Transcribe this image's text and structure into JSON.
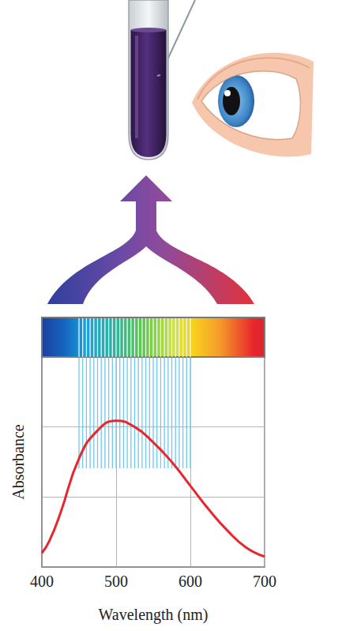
{
  "chart_data": {
    "type": "line",
    "x": [
      400,
      410,
      425,
      450,
      475,
      500,
      525,
      550,
      575,
      600,
      625,
      650,
      675,
      700
    ],
    "values": [
      0.2,
      0.37,
      0.77,
      1.55,
      1.95,
      2.09,
      2.0,
      1.78,
      1.5,
      1.16,
      0.82,
      0.52,
      0.28,
      0.15
    ],
    "color": "#e8262d",
    "xlim": [
      400,
      700
    ],
    "xticks": [
      400,
      500,
      600,
      700
    ],
    "ylim": [
      0,
      3
    ],
    "yticks": [
      0,
      1,
      2,
      3
    ],
    "grid": true,
    "tick_labels": "x",
    "xlabel": "Wavelength (nm)",
    "ylabel": "Absorbance",
    "band": [
      450,
      600
    ]
  }
}
